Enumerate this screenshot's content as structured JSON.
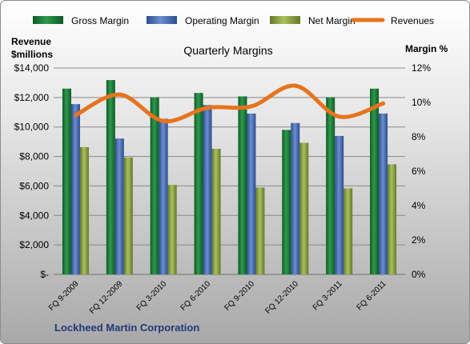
{
  "chart_data": {
    "type": "bar",
    "title": "Quarterly Margins",
    "company": "Lockheed Martin Corporation",
    "y_left_label": [
      "Revenue",
      "$millions"
    ],
    "y_right_label": "Margin %",
    "ylim_left": [
      0,
      14000
    ],
    "ylim_right": [
      0,
      12
    ],
    "y_left_ticks": [
      "$-",
      "$2,000",
      "$4,000",
      "$6,000",
      "$8,000",
      "$10,000",
      "$12,000",
      "$14,000"
    ],
    "y_right_ticks": [
      "0%",
      "2%",
      "4%",
      "6%",
      "8%",
      "10%",
      "12%"
    ],
    "categories": [
      "FQ 9-2009",
      "FQ 12-2009",
      "FQ 3-2010",
      "FQ 6-2010",
      "FQ 9-2010",
      "FQ 12-2010",
      "FQ 3-2011",
      "FQ 6-2011"
    ],
    "legend_position": "top",
    "series": [
      {
        "name": "Gross Margin",
        "axis": "right",
        "kind": "bar",
        "color": "#1e7a3a",
        "values": [
          10.8,
          11.3,
          10.3,
          10.55,
          10.35,
          8.4,
          10.3,
          10.8
        ]
      },
      {
        "name": "Operating Margin",
        "axis": "right",
        "kind": "bar",
        "color": "#4a6fb5",
        "values": [
          9.9,
          7.9,
          9.05,
          9.85,
          9.35,
          8.8,
          8.05,
          9.35
        ]
      },
      {
        "name": "Net Margin",
        "axis": "right",
        "kind": "bar",
        "color": "#8faa44",
        "values": [
          7.4,
          6.8,
          5.2,
          7.3,
          5.05,
          7.65,
          5.0,
          6.4
        ]
      },
      {
        "name": "Revenues",
        "axis": "left",
        "kind": "line",
        "color": "#e8731e",
        "values": [
          10800,
          12200,
          10400,
          11300,
          11400,
          12800,
          10700,
          11600
        ]
      }
    ]
  }
}
